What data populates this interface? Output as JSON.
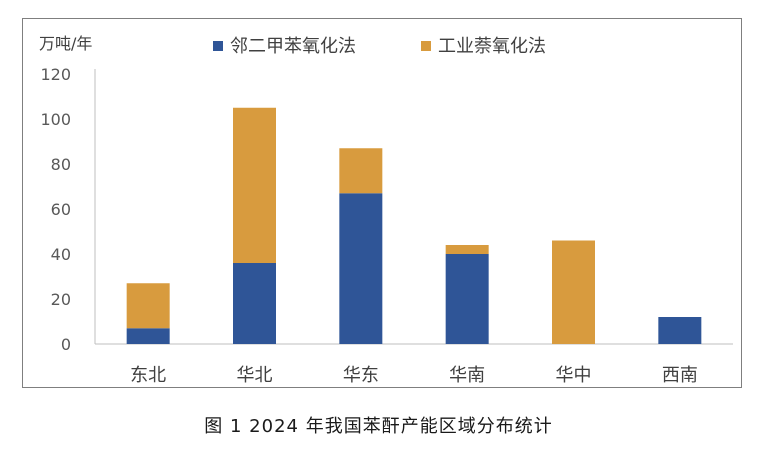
{
  "caption": "图 1  2024 年我国苯酐产能区域分布统计",
  "chart_data": {
    "type": "bar",
    "stacked": true,
    "unit_label": "万吨/年",
    "categories": [
      "东北",
      "华北",
      "华东",
      "华南",
      "华中",
      "西南"
    ],
    "series": [
      {
        "name": "邻二甲苯氧化法",
        "color": "#2f5597",
        "values": [
          7,
          36,
          67,
          40,
          0,
          12
        ]
      },
      {
        "name": "工业萘氧化法",
        "color": "#d89b3e",
        "values": [
          20,
          69,
          20,
          4,
          46,
          0
        ]
      }
    ],
    "ylim": [
      0,
      120
    ],
    "yticks": [
      0,
      20,
      40,
      60,
      80,
      100,
      120
    ],
    "grid": false,
    "legend_position": "top"
  }
}
